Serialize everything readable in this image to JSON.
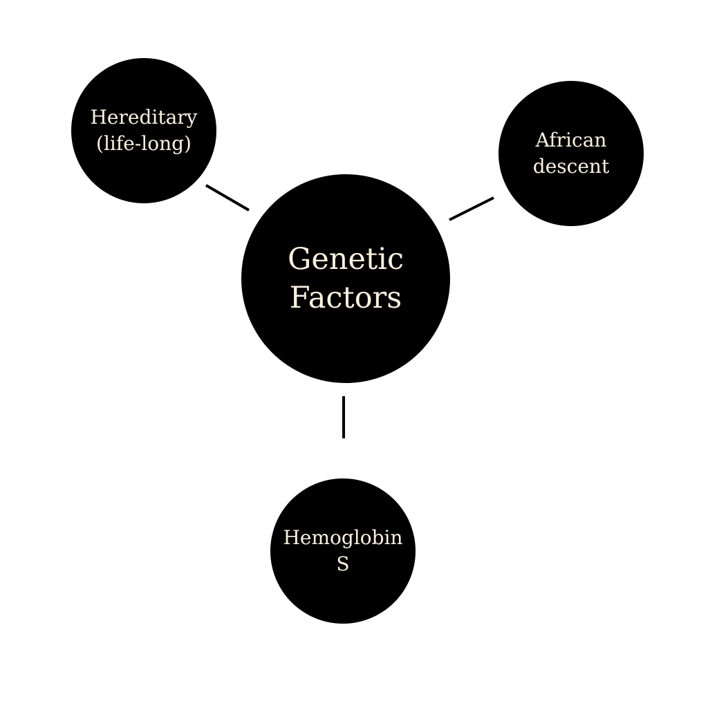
{
  "diagram": {
    "center": {
      "label": "Genetic Factors"
    },
    "nodes": [
      {
        "id": "hereditary",
        "label": "Hereditary (life-long)"
      },
      {
        "id": "african",
        "label": "African descent"
      },
      {
        "id": "hemoglobin",
        "label": "Hemoglobin S"
      }
    ]
  },
  "colors": {
    "background": "#ffffff",
    "node_fill": "#000000",
    "node_text": "#fbf1e1",
    "connector": "#000000"
  }
}
